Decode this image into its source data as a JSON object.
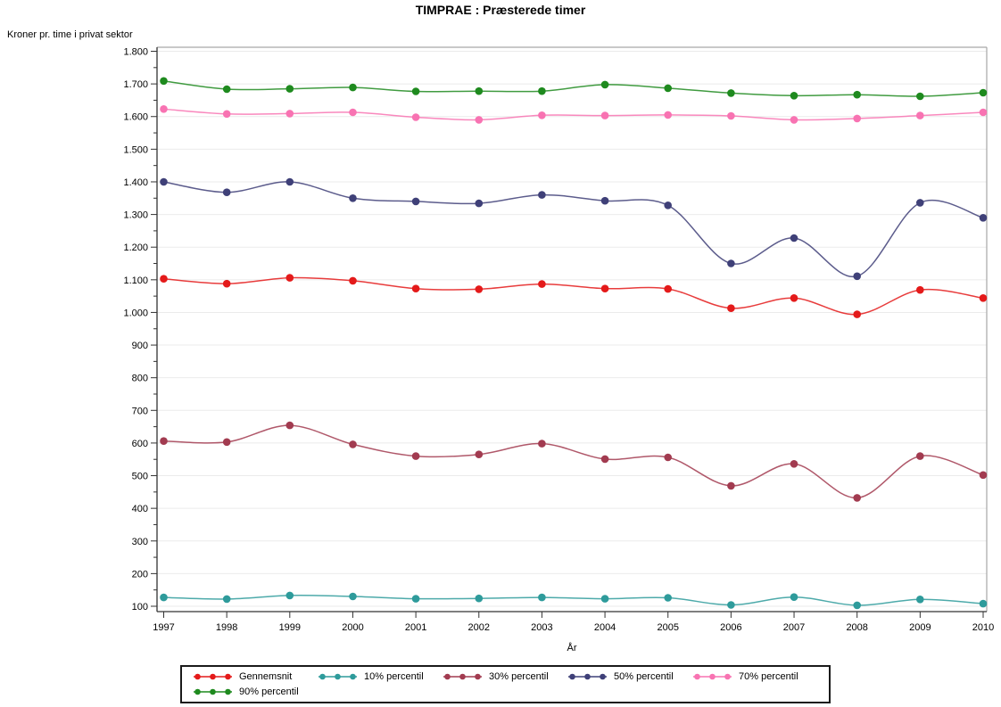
{
  "chart_data": {
    "type": "line",
    "title": "TIMPRAE : Præsterede timer",
    "xlabel": "År",
    "ylabel": "Kroner pr. time i privat sektor",
    "x": [
      1997,
      1998,
      1999,
      2000,
      2001,
      2002,
      2003,
      2004,
      2005,
      2006,
      2007,
      2008,
      2009,
      2010
    ],
    "ylim": [
      100,
      1800
    ],
    "ytick_step": 100,
    "ytick_labels": [
      "100",
      "200",
      "300",
      "400",
      "500",
      "600",
      "700",
      "800",
      "900",
      "1.000",
      "1.100",
      "1.200",
      "1.300",
      "1.400",
      "1.500",
      "1.600",
      "1.700",
      "1.800"
    ],
    "grid": true,
    "legend_position": "bottom",
    "series": [
      {
        "name": "Gennemsnit",
        "color": "#e41a1a",
        "values": [
          1103,
          1088,
          1106,
          1097,
          1073,
          1071,
          1087,
          1073,
          1072,
          1013,
          1044,
          994,
          1069,
          1044
        ]
      },
      {
        "name": "10% percentil",
        "color": "#2e9b9b",
        "values": [
          127,
          122,
          133,
          130,
          123,
          124,
          127,
          123,
          126,
          104,
          128,
          103,
          121,
          108
        ]
      },
      {
        "name": "30% percentil",
        "color": "#a23b50",
        "values": [
          606,
          603,
          654,
          596,
          560,
          565,
          598,
          551,
          556,
          469,
          536,
          432,
          560,
          502
        ]
      },
      {
        "name": "50% percentil",
        "color": "#3f4078",
        "values": [
          1400,
          1368,
          1400,
          1350,
          1340,
          1334,
          1360,
          1342,
          1328,
          1150,
          1228,
          1111,
          1336,
          1290
        ]
      },
      {
        "name": "70% percentil",
        "color": "#f873b2",
        "values": [
          1623,
          1608,
          1609,
          1613,
          1598,
          1590,
          1604,
          1603,
          1605,
          1602,
          1590,
          1594,
          1603,
          1613
        ]
      },
      {
        "name": "90% percentil",
        "color": "#1e8a1e",
        "values": [
          1709,
          1684,
          1685,
          1689,
          1677,
          1678,
          1678,
          1698,
          1687,
          1672,
          1664,
          1667,
          1662,
          1673
        ]
      }
    ]
  }
}
